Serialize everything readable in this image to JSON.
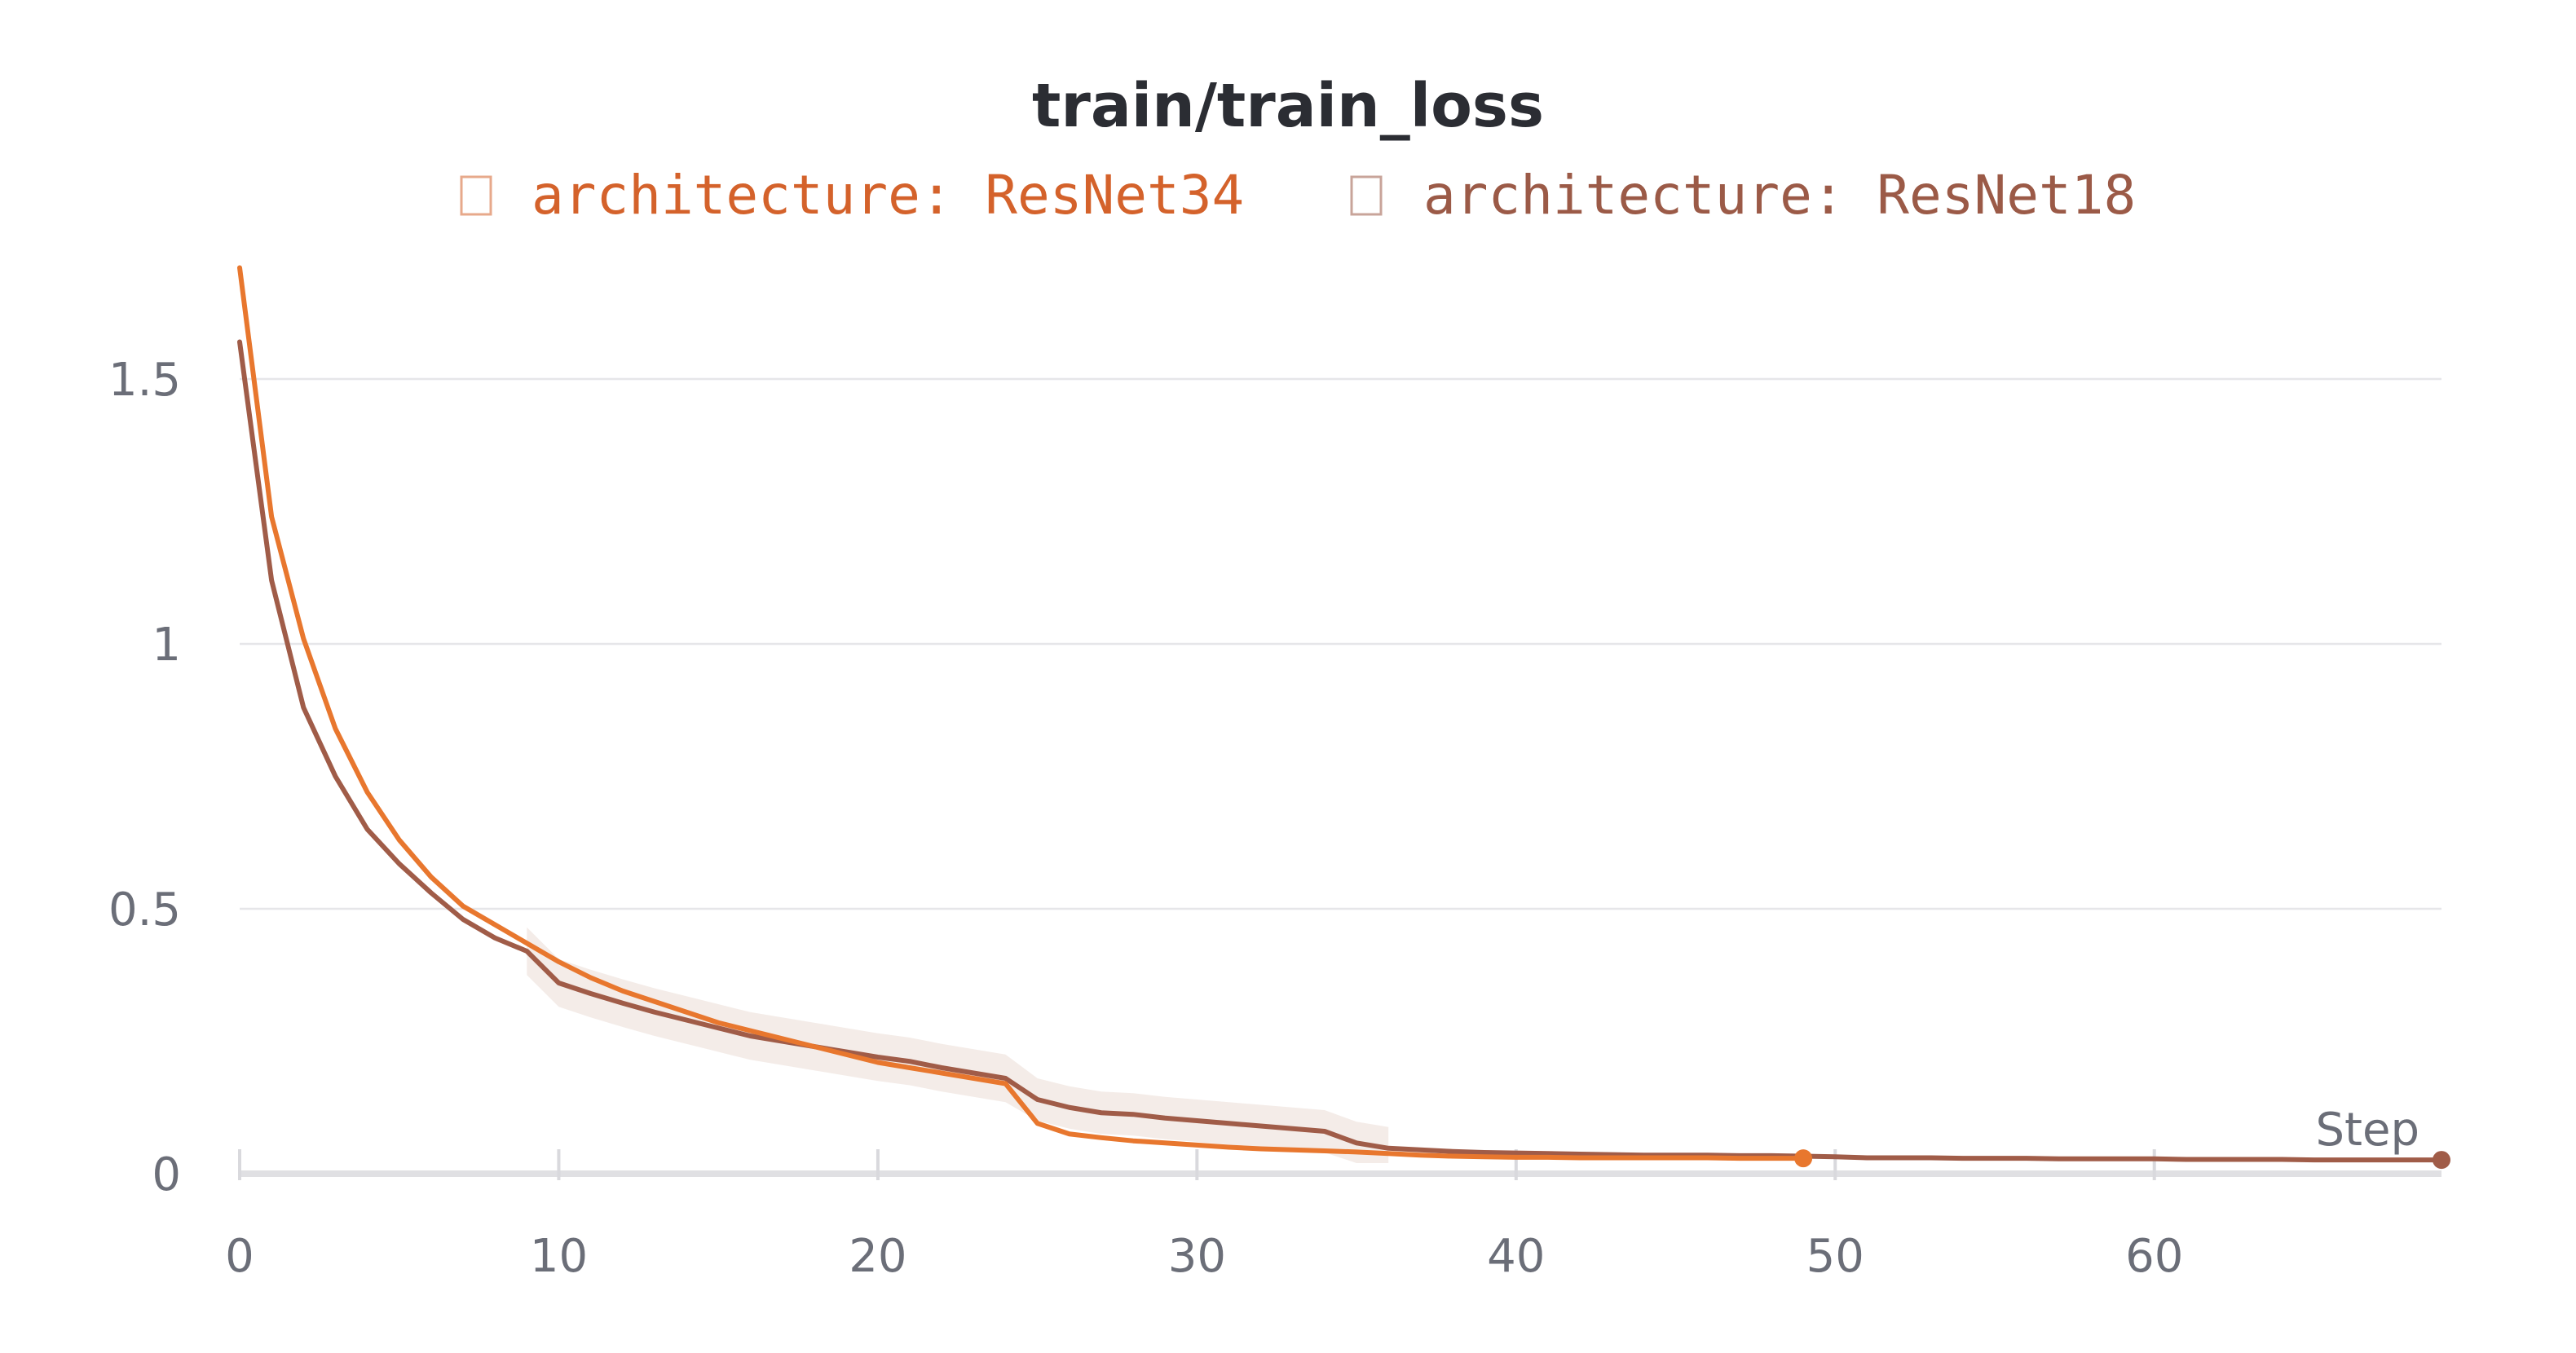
{
  "chart_data": {
    "type": "line",
    "title": "train/train_loss",
    "xlabel": "Step",
    "ylabel": "",
    "xlim": [
      0,
      69
    ],
    "ylim": [
      0,
      1.75
    ],
    "x_ticks": [
      0,
      10,
      20,
      30,
      40,
      50,
      60
    ],
    "y_ticks": [
      0,
      0.5,
      1,
      1.5
    ],
    "x_tick_labels": [
      "0",
      "10",
      "20",
      "30",
      "40",
      "50",
      "60"
    ],
    "y_tick_labels": [
      "0",
      "0.5",
      "1",
      "1.5"
    ],
    "grid": true,
    "legend_position": "top-center",
    "series": [
      {
        "name": "architecture: ResNet34",
        "color": "#e8772e",
        "legend_color": "#d4622b",
        "x": [
          0,
          1,
          2,
          3,
          4,
          5,
          6,
          7,
          8,
          9,
          10,
          11,
          12,
          13,
          14,
          15,
          16,
          17,
          18,
          19,
          20,
          21,
          22,
          23,
          24,
          25,
          26,
          27,
          28,
          29,
          30,
          31,
          32,
          33,
          34,
          35,
          36,
          37,
          38,
          39,
          40,
          41,
          42,
          43,
          44,
          45,
          46,
          47,
          48,
          49
        ],
        "y": [
          1.71,
          1.24,
          1.01,
          0.84,
          0.72,
          0.63,
          0.56,
          0.505,
          0.47,
          0.435,
          0.4,
          0.37,
          0.345,
          0.325,
          0.305,
          0.285,
          0.27,
          0.255,
          0.24,
          0.225,
          0.21,
          0.2,
          0.19,
          0.18,
          0.17,
          0.095,
          0.075,
          0.068,
          0.062,
          0.058,
          0.054,
          0.05,
          0.047,
          0.045,
          0.043,
          0.041,
          0.038,
          0.035,
          0.033,
          0.032,
          0.031,
          0.031,
          0.03,
          0.03,
          0.03,
          0.03,
          0.03,
          0.029,
          0.029,
          0.029
        ]
      },
      {
        "name": "architecture: ResNet18",
        "color": "#a05c48",
        "legend_color": "#9b5a47",
        "x": [
          0,
          1,
          2,
          3,
          4,
          5,
          6,
          7,
          8,
          9,
          10,
          11,
          12,
          13,
          14,
          15,
          16,
          17,
          18,
          19,
          20,
          21,
          22,
          23,
          24,
          25,
          26,
          27,
          28,
          29,
          30,
          31,
          32,
          33,
          34,
          35,
          36,
          37,
          38,
          39,
          40,
          41,
          42,
          43,
          44,
          45,
          46,
          47,
          48,
          49,
          50,
          51,
          52,
          53,
          54,
          55,
          56,
          57,
          58,
          59,
          60,
          61,
          62,
          63,
          64,
          65,
          66,
          67,
          68,
          69
        ],
        "y": [
          1.57,
          1.12,
          0.88,
          0.75,
          0.65,
          0.585,
          0.53,
          0.48,
          0.445,
          0.42,
          0.36,
          0.34,
          0.322,
          0.305,
          0.29,
          0.275,
          0.26,
          0.25,
          0.24,
          0.23,
          0.22,
          0.212,
          0.2,
          0.19,
          0.18,
          0.14,
          0.125,
          0.115,
          0.112,
          0.105,
          0.1,
          0.095,
          0.09,
          0.085,
          0.08,
          0.058,
          0.048,
          0.045,
          0.042,
          0.04,
          0.039,
          0.038,
          0.037,
          0.036,
          0.035,
          0.035,
          0.035,
          0.034,
          0.034,
          0.033,
          0.032,
          0.03,
          0.03,
          0.03,
          0.029,
          0.029,
          0.029,
          0.028,
          0.028,
          0.028,
          0.028,
          0.027,
          0.027,
          0.027,
          0.027,
          0.026,
          0.026,
          0.026,
          0.026,
          0.026
        ]
      }
    ]
  }
}
